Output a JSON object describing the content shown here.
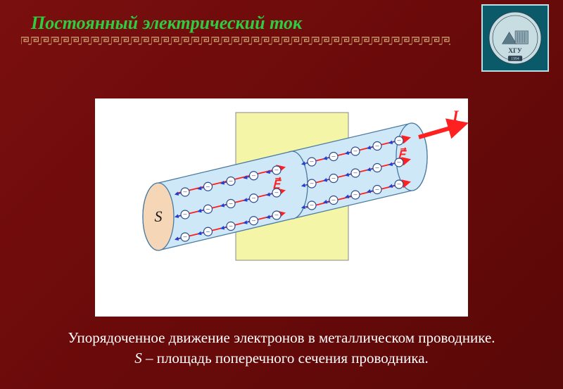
{
  "title": "Постоянный электрический ток",
  "logo": {
    "initials": "ХГУ",
    "year": "1994",
    "bg": "#0a5a6a",
    "circle_fill": "#c8dde2",
    "border": "#b8e0e8"
  },
  "caption": {
    "line1": "Упорядоченное движение электронов в металлическом проводнике.",
    "var": "S",
    "line2_rest": " – площадь поперечного сечения проводника."
  },
  "diagram": {
    "type": "physics-illustration",
    "background_color": "#ffffff",
    "plane_color": "#f5f5a8",
    "plane_border": "#888888",
    "cylinder_fill": "#cfe8f7",
    "cylinder_stroke": "#4a7aa0",
    "cylinder_end_fill": "#f5d7b8",
    "electron_fill": "#ffffff",
    "electron_stroke": "#2a4a8a",
    "electron_sign": "−",
    "electron_arrow_color": "#2040d0",
    "field_arrow_color": "#ff2020",
    "field_label": "E",
    "current_label": "I",
    "area_label": "S",
    "current_arrow_color": "#ff2020",
    "axis_angle_deg": 20,
    "electrons_per_row": 6,
    "electron_rows": 3
  },
  "colors": {
    "page_bg_from": "#7a0f0f",
    "page_bg_to": "#5a0808",
    "title_color": "#2ecc40",
    "caption_color": "#ffffff",
    "greek_border": "#d4af7a"
  }
}
